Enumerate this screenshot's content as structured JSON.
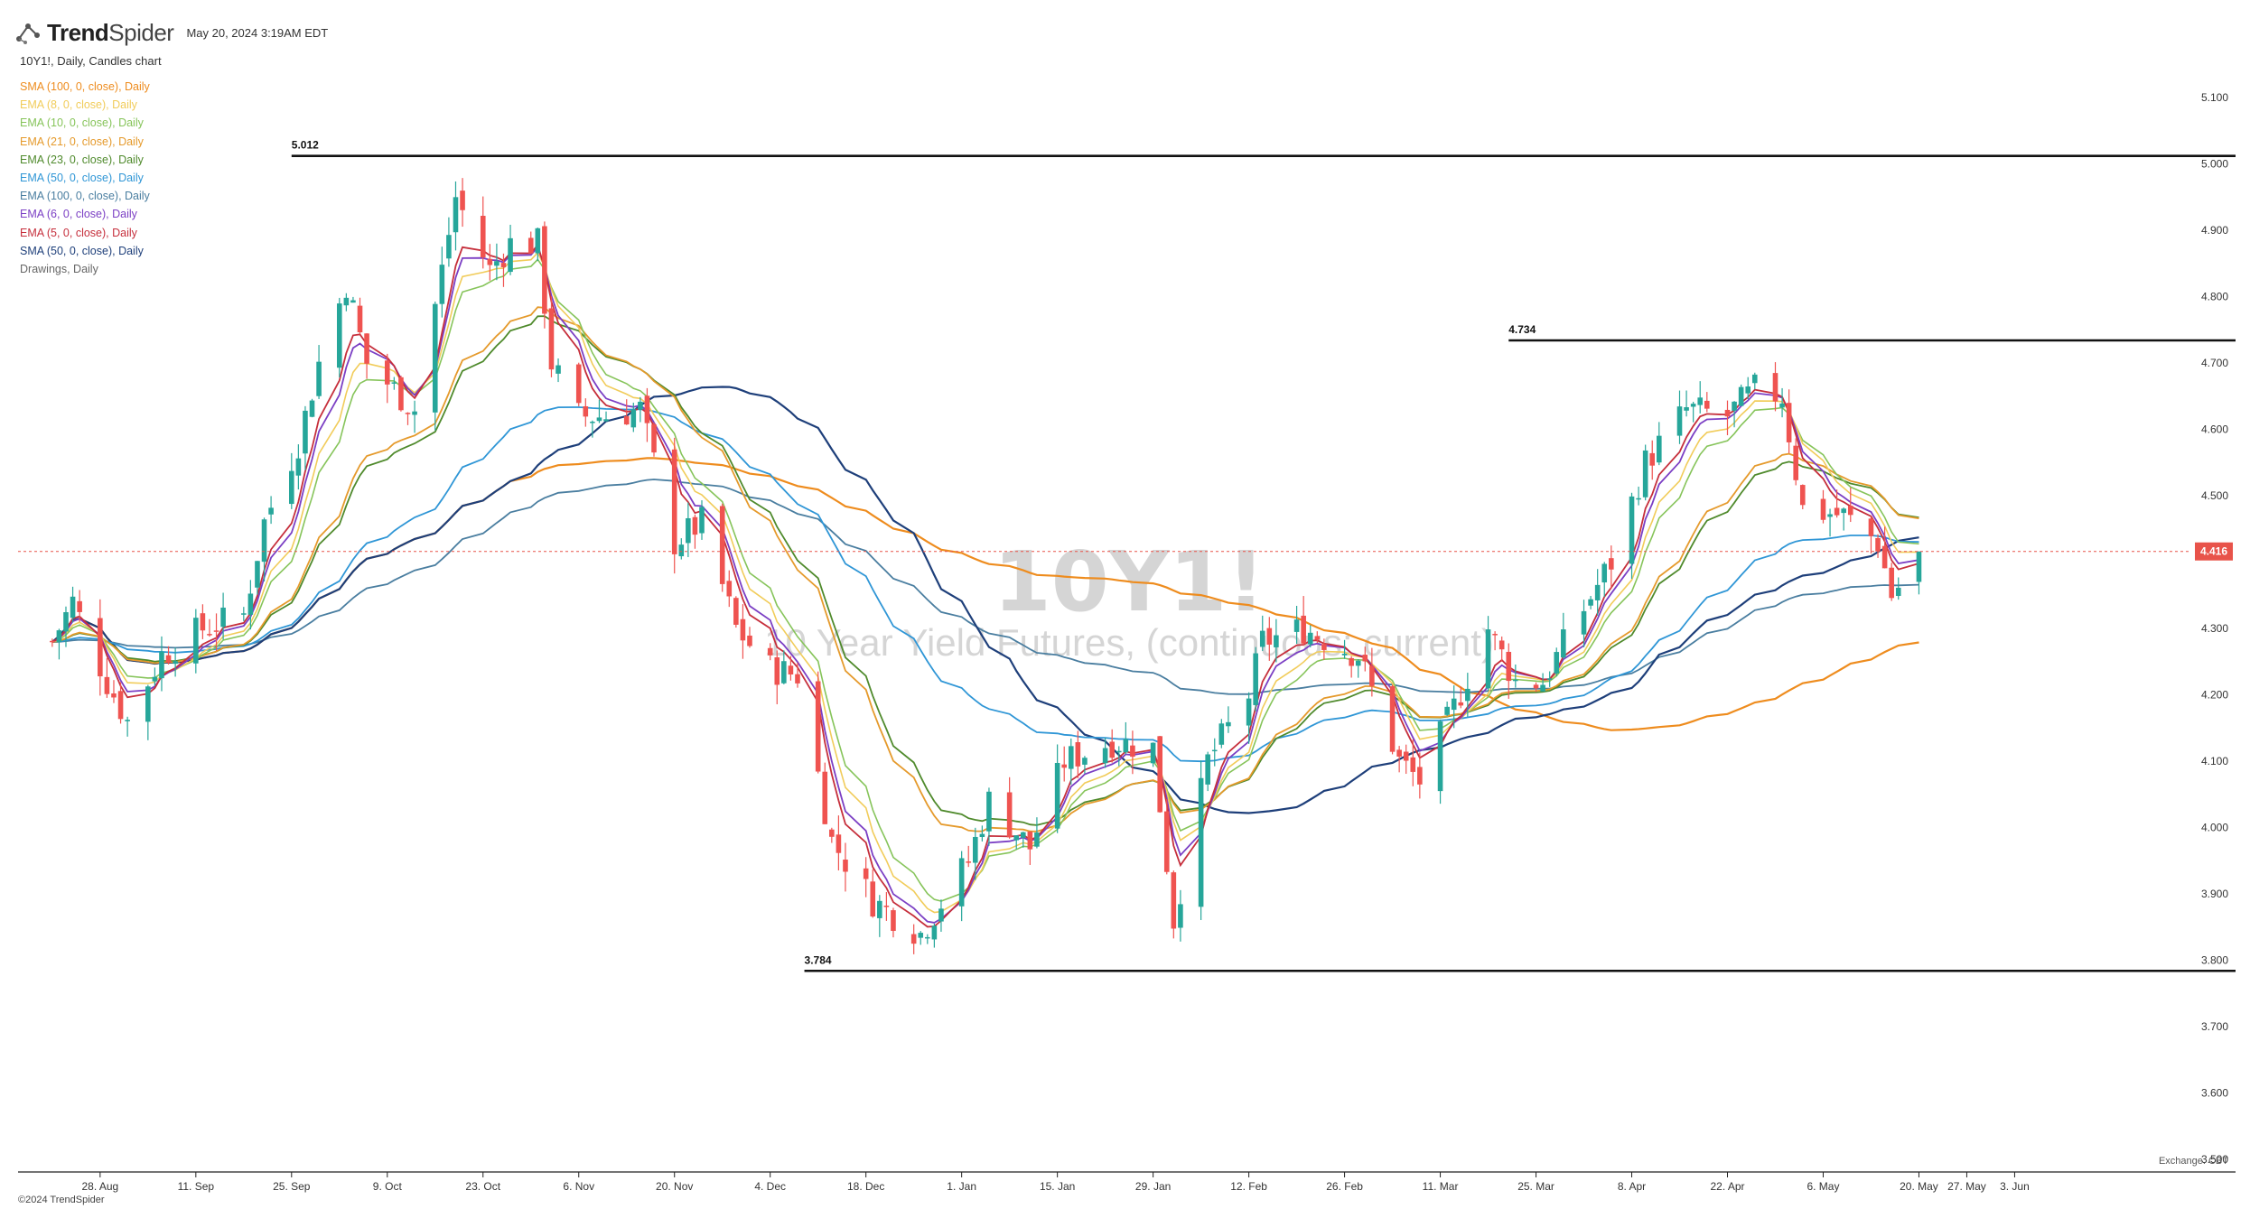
{
  "header": {
    "brand_bold": "Trend",
    "brand_light": "Spider",
    "timestamp": "May 20, 2024 3:19AM EDT"
  },
  "chart_description": "10Y1!, Daily, Candles chart",
  "footer": {
    "copyright": "©2024 TrendSpider",
    "exchange": "Exchange: CBT"
  },
  "watermark": {
    "symbol": "10Y1!",
    "name": "10 Year Yield Futures, (continuous: current)"
  },
  "colors": {
    "up": "#26a69a",
    "down": "#ef5350",
    "last_price": "#e8534a"
  },
  "chart_data": {
    "type": "candlestick",
    "symbol": "10Y1!",
    "interval": "Daily",
    "y_ticks": [
      "5.100",
      "5.000",
      "4.900",
      "4.800",
      "4.700",
      "4.600",
      "4.500",
      "4.300",
      "4.200",
      "4.100",
      "4.000",
      "3.900",
      "3.800",
      "3.700",
      "3.600",
      "3.500"
    ],
    "ylim": [
      3.5,
      5.1
    ],
    "x_ticks": [
      "28. Aug",
      "11. Sep",
      "25. Sep",
      "9. Oct",
      "23. Oct",
      "6. Nov",
      "20. Nov",
      "4. Dec",
      "18. Dec",
      "1. Jan",
      "15. Jan",
      "29. Jan",
      "12. Feb",
      "26. Feb",
      "11. Mar",
      "25. Mar",
      "8. Apr",
      "22. Apr",
      "6. May",
      "20. May",
      "27. May",
      "3. Jun"
    ],
    "last_price": "4.416",
    "levels": [
      {
        "label": "5.012",
        "value": 5.012
      },
      {
        "label": "4.734",
        "value": 4.734
      },
      {
        "label": "3.784",
        "value": 3.784
      }
    ],
    "legend": [
      {
        "label": "SMA (100, 0, close), Daily",
        "color": "#ee8c1e"
      },
      {
        "label": "EMA (8, 0, close), Daily",
        "color": "#f1cc5a"
      },
      {
        "label": "EMA (10, 0, close), Daily",
        "color": "#86c45a"
      },
      {
        "label": "EMA (21, 0, close), Daily",
        "color": "#e59a2c"
      },
      {
        "label": "EMA (23, 0, close), Daily",
        "color": "#4f8a2c"
      },
      {
        "label": "EMA (50, 0, close), Daily",
        "color": "#2f96d6"
      },
      {
        "label": "EMA (100, 0, close), Daily",
        "color": "#4a7ea0"
      },
      {
        "label": "EMA (6, 0, close), Daily",
        "color": "#7b3fc4"
      },
      {
        "label": "EMA (5, 0, close), Daily",
        "color": "#c62f3c"
      },
      {
        "label": "SMA (50, 0, close), Daily",
        "color": "#1e3f7a"
      },
      {
        "label": "Drawings, Daily",
        "color": "#666666"
      }
    ],
    "close_path": [
      {
        "date": "2023-08-21",
        "close": 4.28
      },
      {
        "date": "2023-08-24",
        "close": 4.34
      },
      {
        "date": "2023-08-29",
        "close": 4.22
      },
      {
        "date": "2023-09-01",
        "close": 4.16
      },
      {
        "date": "2023-09-06",
        "close": 4.26
      },
      {
        "date": "2023-09-12",
        "close": 4.3
      },
      {
        "date": "2023-09-18",
        "close": 4.32
      },
      {
        "date": "2023-09-21",
        "close": 4.46
      },
      {
        "date": "2023-09-26",
        "close": 4.58
      },
      {
        "date": "2023-09-29",
        "close": 4.7
      },
      {
        "date": "2023-10-03",
        "close": 4.82
      },
      {
        "date": "2023-10-06",
        "close": 4.7
      },
      {
        "date": "2023-10-10",
        "close": 4.66
      },
      {
        "date": "2023-10-13",
        "close": 4.63
      },
      {
        "date": "2023-10-17",
        "close": 4.84
      },
      {
        "date": "2023-10-19",
        "close": 4.95
      },
      {
        "date": "2023-10-24",
        "close": 4.84
      },
      {
        "date": "2023-10-27",
        "close": 4.88
      },
      {
        "date": "2023-10-31",
        "close": 4.88
      },
      {
        "date": "2023-11-02",
        "close": 4.7
      },
      {
        "date": "2023-11-06",
        "close": 4.62
      },
      {
        "date": "2023-11-10",
        "close": 4.62
      },
      {
        "date": "2023-11-15",
        "close": 4.63
      },
      {
        "date": "2023-11-20",
        "close": 4.43
      },
      {
        "date": "2023-11-24",
        "close": 4.46
      },
      {
        "date": "2023-11-29",
        "close": 4.3
      },
      {
        "date": "2023-12-04",
        "close": 4.24
      },
      {
        "date": "2023-12-08",
        "close": 4.23
      },
      {
        "date": "2023-12-13",
        "close": 3.98
      },
      {
        "date": "2023-12-19",
        "close": 3.89
      },
      {
        "date": "2023-12-26",
        "close": 3.84
      },
      {
        "date": "2024-01-02",
        "close": 3.95
      },
      {
        "date": "2024-01-05",
        "close": 4.04
      },
      {
        "date": "2024-01-11",
        "close": 3.97
      },
      {
        "date": "2024-01-16",
        "close": 4.1
      },
      {
        "date": "2024-01-23",
        "close": 4.13
      },
      {
        "date": "2024-01-29",
        "close": 4.12
      },
      {
        "date": "2024-02-01",
        "close": 3.86
      },
      {
        "date": "2024-02-06",
        "close": 4.1
      },
      {
        "date": "2024-02-12",
        "close": 4.2
      },
      {
        "date": "2024-02-14",
        "close": 4.28
      },
      {
        "date": "2024-02-20",
        "close": 4.3
      },
      {
        "date": "2024-02-28",
        "close": 4.26
      },
      {
        "date": "2024-03-05",
        "close": 4.1
      },
      {
        "date": "2024-03-08",
        "close": 4.07
      },
      {
        "date": "2024-03-13",
        "close": 4.18
      },
      {
        "date": "2024-03-18",
        "close": 4.3
      },
      {
        "date": "2024-03-22",
        "close": 4.22
      },
      {
        "date": "2024-03-26",
        "close": 4.22
      },
      {
        "date": "2024-04-01",
        "close": 4.33
      },
      {
        "date": "2024-04-05",
        "close": 4.4
      },
      {
        "date": "2024-04-10",
        "close": 4.55
      },
      {
        "date": "2024-04-16",
        "close": 4.63
      },
      {
        "date": "2024-04-22",
        "close": 4.62
      },
      {
        "date": "2024-04-26",
        "close": 4.66
      },
      {
        "date": "2024-04-30",
        "close": 4.65
      },
      {
        "date": "2024-05-03",
        "close": 4.48
      },
      {
        "date": "2024-05-09",
        "close": 4.47
      },
      {
        "date": "2024-05-14",
        "close": 4.43
      },
      {
        "date": "2024-05-16",
        "close": 4.35
      },
      {
        "date": "2024-05-20",
        "close": 4.4
      }
    ]
  }
}
